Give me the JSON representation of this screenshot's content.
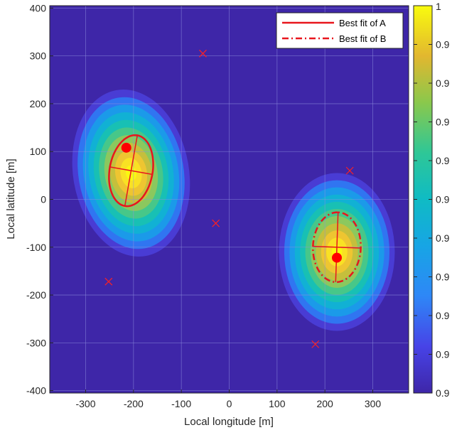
{
  "chart_data": {
    "type": "heatmap",
    "xlabel": "Local longitude [m]",
    "ylabel": "Local latitude [m]",
    "xlim": [
      -375,
      375
    ],
    "ylim": [
      -405,
      405
    ],
    "xticks": [
      -300,
      -200,
      -100,
      0,
      100,
      200,
      300
    ],
    "yticks": [
      -400,
      -300,
      -200,
      -100,
      0,
      100,
      200,
      300,
      400
    ],
    "grid": true,
    "legend_position": "top-right",
    "legend": [
      {
        "label": "Best fit of A",
        "style": "solid",
        "color": "#e8161d"
      },
      {
        "label": "Best fit of B",
        "style": "dash-dot",
        "color": "#e8161d"
      }
    ],
    "colorbar": {
      "colormap": "parula",
      "ticks": [
        "1",
        "0.9",
        "0.9",
        "0.9",
        "0.9",
        "0.9",
        "0.9",
        "0.9",
        "0.9",
        "0.9",
        "0.9"
      ]
    },
    "density_blobs": [
      {
        "name": "A",
        "center": [
          -205,
          55
        ],
        "sigma": [
          55,
          80
        ],
        "angle_deg": 10,
        "peak": 1.0
      },
      {
        "name": "B",
        "center": [
          225,
          -110
        ],
        "sigma": [
          55,
          75
        ],
        "angle_deg": 0,
        "peak": 1.0
      }
    ],
    "ellipses": [
      {
        "name": "A",
        "center": [
          -205,
          60
        ],
        "semi_major": 75,
        "semi_minor": 45,
        "angle_deg": 80,
        "style": "solid"
      },
      {
        "name": "B",
        "center": [
          225,
          -100
        ],
        "semi_major": 73,
        "semi_minor": 50,
        "angle_deg": 88,
        "style": "dash-dot"
      }
    ],
    "red_dots": [
      {
        "x": -215,
        "y": 108
      },
      {
        "x": 225,
        "y": -122
      }
    ],
    "x_markers": [
      {
        "x": -55,
        "y": 305
      },
      {
        "x": 252,
        "y": 60
      },
      {
        "x": -28,
        "y": -50
      },
      {
        "x": -252,
        "y": -172
      },
      {
        "x": 180,
        "y": -303
      }
    ],
    "colors": {
      "background": "#3e26a8",
      "grid": "#8f8fe0",
      "fit_line": "#e8161d",
      "axes": "#262626"
    }
  }
}
